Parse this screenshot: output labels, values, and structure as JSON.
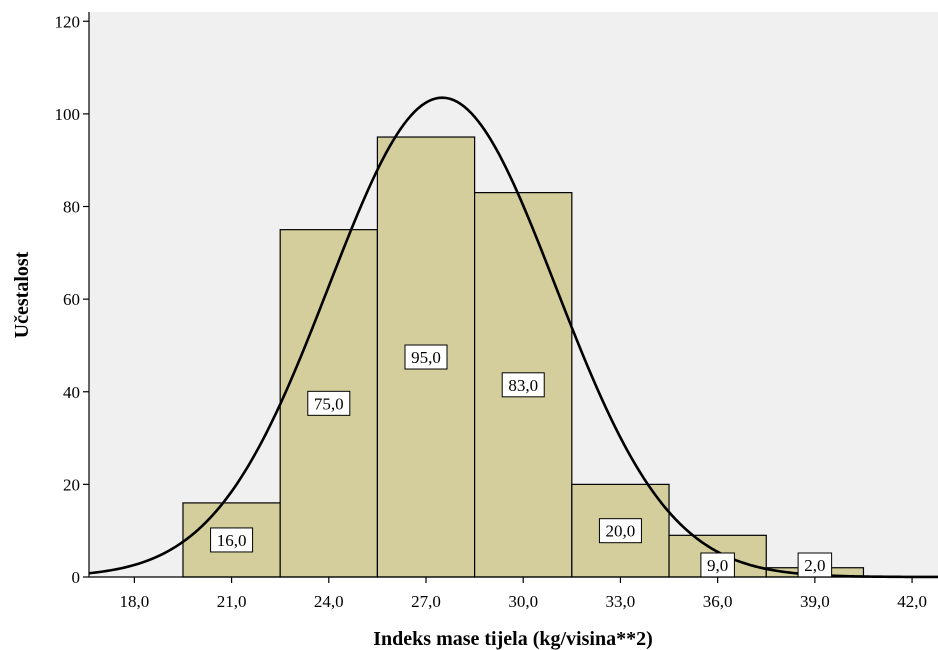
{
  "chart_data": {
    "type": "bar",
    "subtype": "histogram",
    "xlabel": "Indeks mase tijela (kg/visina**2)",
    "ylabel": "Učestalost",
    "xlim": [
      16.6,
      42.8
    ],
    "ylim": [
      0,
      122
    ],
    "x_ticks": [
      18,
      21,
      24,
      27,
      30,
      33,
      36,
      39,
      42
    ],
    "x_tick_labels": [
      "18,0",
      "21,0",
      "24,0",
      "27,0",
      "30,0",
      "33,0",
      "36,0",
      "39,0",
      "42,0"
    ],
    "y_ticks": [
      0,
      20,
      40,
      60,
      80,
      100,
      120
    ],
    "y_tick_labels": [
      "0",
      "20",
      "40",
      "60",
      "80",
      "100",
      "120"
    ],
    "bins": [
      {
        "start": 19.5,
        "end": 22.5,
        "value": 16,
        "label": "16,0"
      },
      {
        "start": 22.5,
        "end": 25.5,
        "value": 75,
        "label": "75,0"
      },
      {
        "start": 25.5,
        "end": 28.5,
        "value": 95,
        "label": "95,0"
      },
      {
        "start": 28.5,
        "end": 31.5,
        "value": 83,
        "label": "83,0"
      },
      {
        "start": 31.5,
        "end": 34.5,
        "value": 20,
        "label": "20,0"
      },
      {
        "start": 34.5,
        "end": 37.5,
        "value": 9,
        "label": "9,0"
      },
      {
        "start": 37.5,
        "end": 40.5,
        "value": 2,
        "label": "2,0"
      }
    ],
    "normal_curve": {
      "mean": 27.5,
      "sd": 3.5,
      "peak": 103.5
    },
    "colors": {
      "bar_fill": "#d3ce9b",
      "plot_bg": "#f0f0f0",
      "curve": "#000000"
    },
    "grid": false
  }
}
